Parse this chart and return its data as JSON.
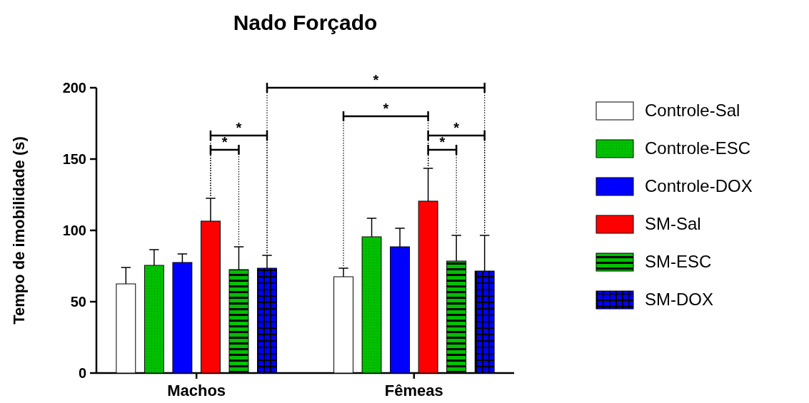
{
  "chart_data": {
    "type": "bar",
    "title": "Nado Forçado",
    "ylabel": "Tempo de imobilidade (s)",
    "categories": [
      "Machos",
      "Fêmeas"
    ],
    "series": [
      {
        "name": "Controle-Sal",
        "color": "#ffffff",
        "values": [
          62.5,
          67.5
        ],
        "errors": [
          [
            62.5,
            74
          ],
          [
            67.5,
            73.5
          ]
        ]
      },
      {
        "name": "Controle-ESC",
        "color": "#00c000",
        "values": [
          75.5,
          95.5
        ],
        "errors": [
          [
            75.5,
            86.5
          ],
          [
            95.5,
            108.5
          ]
        ]
      },
      {
        "name": "Controle-DOX",
        "color": "#0000ff",
        "values": [
          77.5,
          88.5
        ],
        "errors": [
          [
            77.5,
            83.5
          ],
          [
            88.5,
            101.5
          ]
        ]
      },
      {
        "name": "SM-Sal",
        "color": "#ff0000",
        "values": [
          106.5,
          120.5
        ],
        "errors": [
          [
            106.5,
            122.5
          ],
          [
            120.5,
            143.5
          ]
        ]
      },
      {
        "name": "SM-ESC",
        "color": "#00c000",
        "values": [
          72.5,
          78.5
        ],
        "errors": [
          [
            72.5,
            88.5
          ],
          [
            78.5,
            96.5
          ]
        ]
      },
      {
        "name": "SM-DOX",
        "color": "#0000ff",
        "values": [
          73.5,
          71.5
        ],
        "errors": [
          [
            73.5,
            82.5
          ],
          [
            71.5,
            96.5
          ]
        ]
      }
    ],
    "ylim": [
      0,
      200
    ],
    "yticks": [
      0,
      50,
      100,
      150,
      200
    ],
    "legend": "right",
    "annotations": [
      "*",
      "*",
      "*",
      "*",
      "*",
      "*"
    ]
  }
}
